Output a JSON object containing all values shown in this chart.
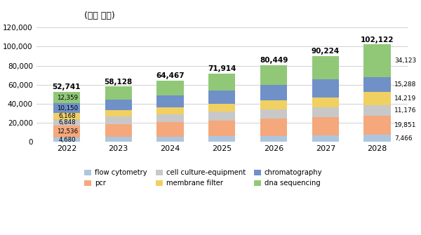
{
  "years": [
    "2022",
    "2023",
    "2024",
    "2025",
    "2026",
    "2027",
    "2028"
  ],
  "totals": [
    52741,
    58128,
    64467,
    71914,
    80449,
    90224,
    102122
  ],
  "segments": {
    "flow cytometry": [
      4680,
      5100,
      5600,
      6100,
      6500,
      6900,
      7466
    ],
    "pcr": [
      12536,
      13800,
      15100,
      16500,
      18000,
      19200,
      19851
    ],
    "cell culture-equipment": [
      6848,
      7500,
      8200,
      9000,
      9800,
      10500,
      11176
    ],
    "membrane filter": [
      6168,
      6800,
      7500,
      8200,
      9100,
      9800,
      14219
    ],
    "chromatography": [
      10150,
      11200,
      12600,
      14200,
      16300,
      19100,
      15288
    ],
    "dna sequencing": [
      12359,
      13728,
      15467,
      17914,
      20749,
      24724,
      34123
    ]
  },
  "colors": {
    "flow cytometry": "#adc6e0",
    "pcr": "#f4a87c",
    "cell culture-equipment": "#c8c8c8",
    "membrane filter": "#f0d060",
    "chromatography": "#7090c8",
    "dna sequencing": "#90c878"
  },
  "series_order": [
    "flow cytometry",
    "pcr",
    "cell culture-equipment",
    "membrane filter",
    "chromatography",
    "dna sequencing"
  ],
  "label_vals_2022": [
    4680,
    12536,
    6848,
    6168,
    10150,
    12359
  ],
  "label_vals_2028": [
    7466,
    19851,
    11176,
    14219,
    15288,
    34123
  ],
  "title": "(백만 달러)",
  "ylim": [
    0,
    125000
  ],
  "yticks": [
    0,
    20000,
    40000,
    60000,
    80000,
    100000,
    120000
  ],
  "background_color": "#ffffff",
  "grid_color": "#d0d0d0"
}
